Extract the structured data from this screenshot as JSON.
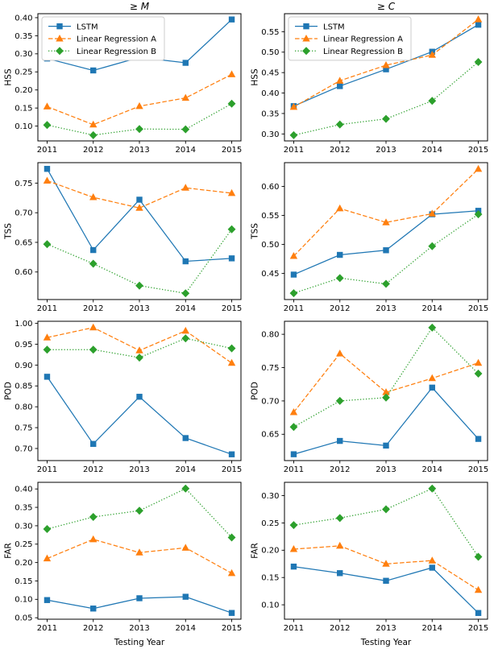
{
  "figure": {
    "xlabel": "Testing Year",
    "xlim": [
      2010.8,
      2015.2
    ],
    "frame_color": "#000000",
    "background": "#ffffff",
    "legend_border_color": "#cccccc",
    "series": [
      {
        "name": "LSTM",
        "color": "#1f77b4",
        "marker": "square",
        "line": "solid"
      },
      {
        "name": "Linear Regression A",
        "color": "#ff7f0e",
        "marker": "triangle",
        "line": "dashed"
      },
      {
        "name": "Linear Regression B",
        "color": "#2ca02c",
        "marker": "diamond",
        "line": "dotted"
      }
    ]
  },
  "chart_data": [
    {
      "type": "line",
      "title": "≥ M",
      "ylabel": "HSS",
      "xlabel": "",
      "x": [
        2011,
        2012,
        2013,
        2014,
        2015
      ],
      "yticks": [
        0.1,
        0.15,
        0.2,
        0.25,
        0.3,
        0.35,
        0.4
      ],
      "ylim": [
        0.059,
        0.411
      ],
      "legend": true,
      "legend_position": "upper-left",
      "grid": false,
      "series": [
        {
          "name": "LSTM",
          "values": [
            0.287,
            0.254,
            0.29,
            0.275,
            0.395
          ]
        },
        {
          "name": "Linear Regression A",
          "values": [
            0.154,
            0.104,
            0.155,
            0.178,
            0.243
          ]
        },
        {
          "name": "Linear Regression B",
          "values": [
            0.103,
            0.075,
            0.092,
            0.091,
            0.162
          ]
        }
      ]
    },
    {
      "type": "line",
      "title": "≥ C",
      "ylabel": "HSS",
      "xlabel": "",
      "x": [
        2011,
        2012,
        2013,
        2014,
        2015
      ],
      "yticks": [
        0.3,
        0.35,
        0.4,
        0.45,
        0.5,
        0.55
      ],
      "ylim": [
        0.283,
        0.594
      ],
      "legend": true,
      "legend_position": "upper-left",
      "grid": false,
      "series": [
        {
          "name": "LSTM",
          "values": [
            0.368,
            0.417,
            0.458,
            0.501,
            0.567
          ]
        },
        {
          "name": "Linear Regression A",
          "values": [
            0.366,
            0.43,
            0.468,
            0.493,
            0.58
          ]
        },
        {
          "name": "Linear Regression B",
          "values": [
            0.297,
            0.323,
            0.337,
            0.381,
            0.476
          ]
        }
      ]
    },
    {
      "type": "line",
      "title": "",
      "ylabel": "TSS",
      "xlabel": "",
      "x": [
        2011,
        2012,
        2013,
        2014,
        2015
      ],
      "yticks": [
        0.6,
        0.65,
        0.7,
        0.75
      ],
      "ylim": [
        0.5535,
        0.7845
      ],
      "legend": false,
      "grid": false,
      "series": [
        {
          "name": "LSTM",
          "values": [
            0.774,
            0.637,
            0.722,
            0.618,
            0.623
          ]
        },
        {
          "name": "Linear Regression A",
          "values": [
            0.754,
            0.726,
            0.708,
            0.742,
            0.733
          ]
        },
        {
          "name": "Linear Regression B",
          "values": [
            0.647,
            0.614,
            0.577,
            0.564,
            0.672
          ]
        }
      ]
    },
    {
      "type": "line",
      "title": "",
      "ylabel": "TSS",
      "xlabel": "",
      "x": [
        2011,
        2012,
        2013,
        2014,
        2015
      ],
      "yticks": [
        0.45,
        0.5,
        0.55,
        0.6
      ],
      "ylim": [
        0.405,
        0.641
      ],
      "legend": false,
      "grid": false,
      "series": [
        {
          "name": "LSTM",
          "values": [
            0.448,
            0.482,
            0.49,
            0.552,
            0.558
          ]
        },
        {
          "name": "Linear Regression A",
          "values": [
            0.48,
            0.562,
            0.538,
            0.553,
            0.63
          ]
        },
        {
          "name": "Linear Regression B",
          "values": [
            0.416,
            0.442,
            0.432,
            0.497,
            0.552
          ]
        }
      ]
    },
    {
      "type": "line",
      "title": "",
      "ylabel": "POD",
      "xlabel": "",
      "x": [
        2011,
        2012,
        2013,
        2014,
        2015
      ],
      "yticks": [
        0.7,
        0.75,
        0.8,
        0.85,
        0.9,
        0.95,
        1.0
      ],
      "ylim": [
        0.671,
        1.005
      ],
      "legend": false,
      "grid": false,
      "series": [
        {
          "name": "LSTM",
          "values": [
            0.872,
            0.711,
            0.824,
            0.725,
            0.686
          ]
        },
        {
          "name": "Linear Regression A",
          "values": [
            0.966,
            0.99,
            0.935,
            0.982,
            0.905
          ]
        },
        {
          "name": "Linear Regression B",
          "values": [
            0.937,
            0.937,
            0.918,
            0.964,
            0.94
          ]
        }
      ]
    },
    {
      "type": "line",
      "title": "",
      "ylabel": "POD",
      "xlabel": "",
      "x": [
        2011,
        2012,
        2013,
        2014,
        2015
      ],
      "yticks": [
        0.65,
        0.7,
        0.75,
        0.8
      ],
      "ylim": [
        0.6105,
        0.8195
      ],
      "legend": false,
      "grid": false,
      "series": [
        {
          "name": "LSTM",
          "values": [
            0.62,
            0.64,
            0.633,
            0.72,
            0.643
          ]
        },
        {
          "name": "Linear Regression A",
          "values": [
            0.683,
            0.771,
            0.713,
            0.734,
            0.757
          ]
        },
        {
          "name": "Linear Regression B",
          "values": [
            0.661,
            0.7,
            0.705,
            0.81,
            0.741
          ]
        }
      ]
    },
    {
      "type": "line",
      "title": "",
      "ylabel": "FAR",
      "xlabel": "Testing Year",
      "x": [
        2011,
        2012,
        2013,
        2014,
        2015
      ],
      "yticks": [
        0.05,
        0.1,
        0.15,
        0.2,
        0.25,
        0.3,
        0.35,
        0.4
      ],
      "ylim": [
        0.046,
        0.418
      ],
      "legend": false,
      "grid": false,
      "series": [
        {
          "name": "LSTM",
          "values": [
            0.098,
            0.075,
            0.103,
            0.107,
            0.063
          ]
        },
        {
          "name": "Linear Regression A",
          "values": [
            0.211,
            0.263,
            0.227,
            0.24,
            0.171
          ]
        },
        {
          "name": "Linear Regression B",
          "values": [
            0.291,
            0.324,
            0.341,
            0.401,
            0.268
          ]
        }
      ]
    },
    {
      "type": "line",
      "title": "",
      "ylabel": "FAR",
      "xlabel": "Testing Year",
      "x": [
        2011,
        2012,
        2013,
        2014,
        2015
      ],
      "yticks": [
        0.1,
        0.15,
        0.2,
        0.25,
        0.3
      ],
      "ylim": [
        0.0736,
        0.3244
      ],
      "legend": false,
      "grid": false,
      "series": [
        {
          "name": "LSTM",
          "values": [
            0.17,
            0.158,
            0.144,
            0.168,
            0.085
          ]
        },
        {
          "name": "Linear Regression A",
          "values": [
            0.202,
            0.208,
            0.175,
            0.181,
            0.127
          ]
        },
        {
          "name": "Linear Regression B",
          "values": [
            0.246,
            0.259,
            0.275,
            0.313,
            0.188
          ]
        }
      ]
    }
  ]
}
